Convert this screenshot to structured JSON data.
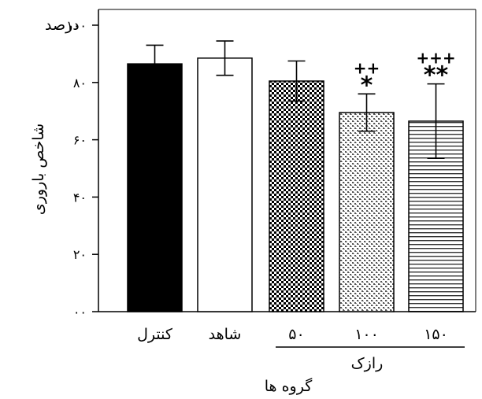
{
  "chart_data": {
    "type": "bar",
    "ylabel": "شاخص باروری",
    "ylabel_unit": "درصد",
    "xlabel": "گروه ها",
    "group_label": "رازک",
    "ylim": [
      0,
      100
    ],
    "yticks": [
      {
        "value": 0,
        "label": "۰۰"
      },
      {
        "value": 20,
        "label": "۲۰"
      },
      {
        "value": 40,
        "label": "۴۰"
      },
      {
        "value": 60,
        "label": "۶۰"
      },
      {
        "value": 80,
        "label": "۸۰"
      },
      {
        "value": 100,
        "label": "۱۰۰"
      }
    ],
    "categories": [
      "کنترل",
      "شاهد",
      "۵۰",
      "۱۰۰",
      "۱۵۰"
    ],
    "values": [
      86.5,
      88.5,
      80.5,
      69.5,
      66.5
    ],
    "errors": [
      6.5,
      6.0,
      7.0,
      6.5,
      13.0
    ],
    "patterns": [
      "solid",
      "empty",
      "checker",
      "dots",
      "hlines"
    ],
    "annotations": [
      {
        "category": "۱۰۰",
        "lines": [
          "++",
          "*"
        ]
      },
      {
        "category": "۱۵۰",
        "lines": [
          "+++",
          "**"
        ]
      }
    ],
    "grid": false
  }
}
